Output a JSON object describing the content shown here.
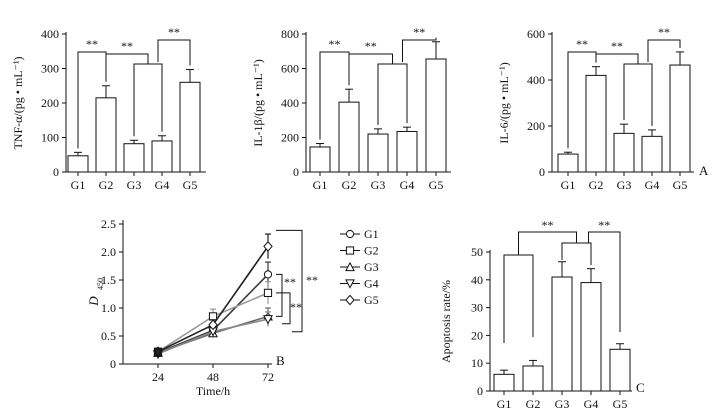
{
  "chart_data": [
    {
      "id": "tnf",
      "type": "bar",
      "ylabel": "TNF-α/(pg • mL⁻¹)",
      "ylim": [
        0,
        400
      ],
      "yticks": [
        0,
        100,
        200,
        300,
        400
      ],
      "categories": [
        "G1",
        "G2",
        "G3",
        "G4",
        "G5"
      ],
      "values": [
        47,
        215,
        82,
        90,
        260
      ],
      "errors": [
        10,
        35,
        10,
        15,
        37
      ],
      "significance": [
        "**",
        "**",
        "**"
      ],
      "panel_letter": ""
    },
    {
      "id": "il1b",
      "type": "bar",
      "ylabel": "IL-1β/(pg • mL⁻¹)",
      "ylim": [
        0,
        800
      ],
      "yticks": [
        0,
        200,
        400,
        600,
        800
      ],
      "categories": [
        "G1",
        "G2",
        "G3",
        "G4",
        "G5"
      ],
      "values": [
        145,
        405,
        220,
        235,
        655
      ],
      "errors": [
        20,
        75,
        30,
        25,
        100
      ],
      "significance": [
        "**",
        "**",
        "**"
      ],
      "panel_letter": ""
    },
    {
      "id": "il6",
      "type": "bar",
      "ylabel": "IL-6/(pg • mL⁻¹)",
      "ylim": [
        0,
        600
      ],
      "yticks": [
        0,
        200,
        400,
        600
      ],
      "categories": [
        "G1",
        "G2",
        "G3",
        "G4",
        "G5"
      ],
      "values": [
        78,
        420,
        168,
        155,
        465
      ],
      "errors": [
        8,
        38,
        40,
        28,
        57
      ],
      "significance": [
        "**",
        "**",
        "**"
      ],
      "panel_letter": "A"
    },
    {
      "id": "prolif",
      "type": "line",
      "ylabel_main": "D",
      "ylabel_sub": "450",
      "xlabel": "Time/h",
      "x": [
        24,
        48,
        72
      ],
      "xticks": [
        24,
        48,
        72
      ],
      "ylim": [
        0,
        2.5
      ],
      "yticks": [
        "0",
        "0.5",
        "1.0",
        "1.5",
        "2.0",
        "2.5"
      ],
      "series": [
        {
          "name": "G1",
          "values": [
            0.2,
            0.6,
            1.6
          ],
          "errors": [
            0.03,
            0.1,
            0.22
          ],
          "marker": "circle",
          "color": "#3a3a3a"
        },
        {
          "name": "G2",
          "values": [
            0.22,
            0.85,
            1.27
          ],
          "errors": [
            0.03,
            0.13,
            0.2
          ],
          "marker": "square",
          "color": "#9a9a9a"
        },
        {
          "name": "G3",
          "values": [
            0.2,
            0.55,
            0.85
          ],
          "errors": [
            0.03,
            0.08,
            0.15
          ],
          "marker": "triangle-up",
          "color": "#6a6a6a"
        },
        {
          "name": "G4",
          "values": [
            0.18,
            0.58,
            0.8
          ],
          "errors": [
            0.03,
            0.08,
            0.13
          ],
          "marker": "triangle-down",
          "color": "#8a8a8a"
        },
        {
          "name": "G5",
          "values": [
            0.22,
            0.7,
            2.1
          ],
          "errors": [
            0.03,
            0.09,
            0.22
          ],
          "marker": "diamond",
          "color": "#1e1e1e"
        }
      ],
      "significance": [
        "**",
        "**",
        "**"
      ],
      "panel_letter": "B"
    },
    {
      "id": "apoptosis",
      "type": "bar",
      "ylabel": "Apoptosis rate/%",
      "ylim": [
        0,
        50
      ],
      "yticks": [
        0,
        10,
        20,
        30,
        40,
        50
      ],
      "categories": [
        "G1",
        "G2",
        "G3",
        "G4",
        "G5"
      ],
      "values": [
        6,
        9,
        41,
        39,
        15
      ],
      "errors": [
        1.5,
        2,
        5.5,
        5,
        2
      ],
      "significance": [
        "**",
        "**"
      ],
      "panel_letter": "C"
    }
  ]
}
